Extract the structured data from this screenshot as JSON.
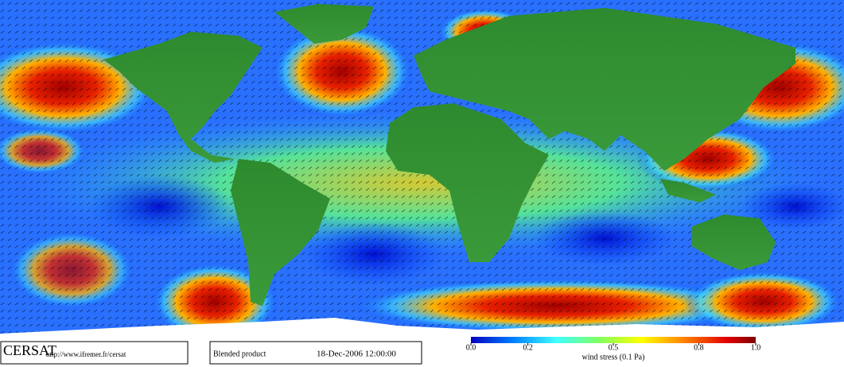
{
  "logo": "CERSAT",
  "url": "http://www.ifremer.fr/cersat",
  "product": "Blended product",
  "date": "18-Dec-2006 12:00:00",
  "colorbar": {
    "label": "wind stress (0.1 Pa)",
    "lim": [
      0,
      1
    ],
    "ticks": [
      {
        "value": 0,
        "label": "0.0"
      },
      {
        "value": 0.2,
        "label": "0.2"
      },
      {
        "value": 0.5,
        "label": "0.5"
      },
      {
        "value": 0.8,
        "label": "0.8"
      },
      {
        "value": 1,
        "label": "1.0"
      }
    ]
  }
}
